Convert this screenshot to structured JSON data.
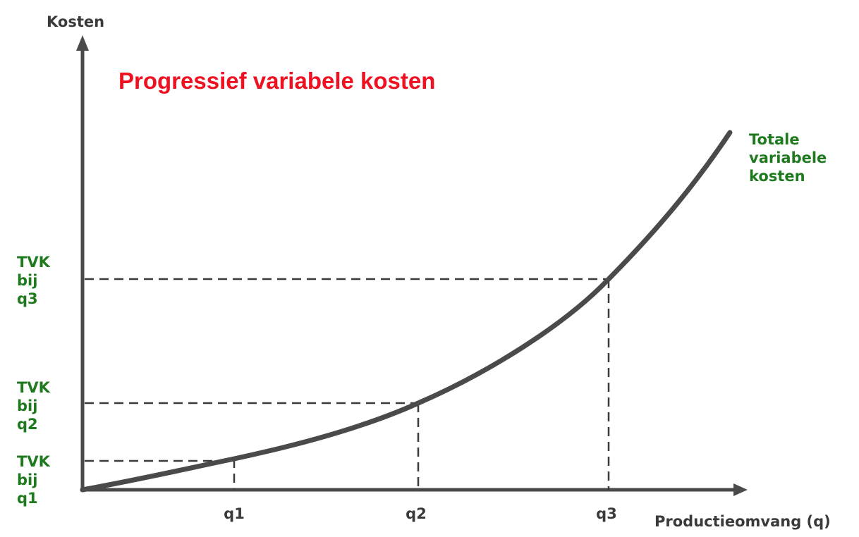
{
  "chart_data": {
    "type": "line",
    "title": "Progressief variabele kosten",
    "xlabel": "Productieomvang (q)",
    "ylabel": "Kosten",
    "grid": false,
    "x_ticks": [
      "q1",
      "q2",
      "q3"
    ],
    "series": [
      {
        "name": "Totale variabele kosten",
        "line_label": [
          "Totale",
          "variabele",
          "kosten"
        ],
        "color": "#4a4a4a"
      }
    ],
    "markers": [
      {
        "x_label": "q1",
        "y_label": [
          "TVK",
          "bij",
          "q1"
        ]
      },
      {
        "x_label": "q2",
        "y_label": [
          "TVK",
          "bij",
          "q2"
        ]
      },
      {
        "x_label": "q3",
        "y_label": [
          "TVK",
          "bij",
          "q3"
        ]
      }
    ],
    "colors": {
      "title": "#ee1122",
      "labels_green": "#1f7a1f",
      "axis": "#4a4a4a"
    }
  }
}
